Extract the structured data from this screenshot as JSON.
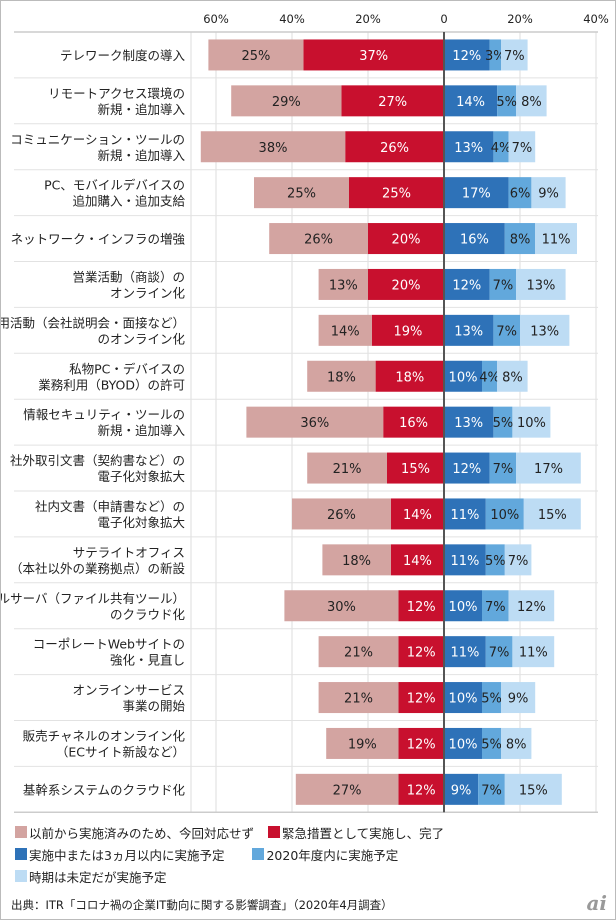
{
  "chart_data": {
    "type": "bar",
    "orientation": "horizontal-diverging-stacked",
    "axis_ticks": [
      "60%",
      "40%",
      "20%",
      "0",
      "20%",
      "40%"
    ],
    "xlim": [
      -60,
      40
    ],
    "grid": true,
    "legend_position": "bottom",
    "categories": [
      [
        "テレワーク制度の導入"
      ],
      [
        "リモートアクセス環境の",
        "新規・追加導入"
      ],
      [
        "コミュニケーション・ツールの",
        "新規・追加導入"
      ],
      [
        "PC、モバイルデバイスの",
        "追加購入・追加支給"
      ],
      [
        "ネットワーク・インフラの増強"
      ],
      [
        "営業活動（商談）の",
        "オンライン化"
      ],
      [
        "採用活動（会社説明会・面接など）",
        "のオンライン化"
      ],
      [
        "私物PC・デバイスの",
        "業務利用（BYOD）の許可"
      ],
      [
        "情報セキュリティ・ツールの",
        "新規・追加導入"
      ],
      [
        "社外取引文書（契約書など）の",
        "電子化対象拡大"
      ],
      [
        "社内文書（申請書など）の",
        "電子化対象拡大"
      ],
      [
        "サテライトオフィス",
        "（本社以外の業務拠点）の新設"
      ],
      [
        "ファイルサーバ（ファイル共有ツール）",
        "のクラウド化"
      ],
      [
        "コーポレートWebサイトの",
        "強化・見直し"
      ],
      [
        "オンラインサービス",
        "事業の開始"
      ],
      [
        "販売チャネルのオンライン化",
        "（ECサイト新設など）"
      ],
      [
        "基幹系システムのクラウド化"
      ]
    ],
    "series": [
      {
        "name": "以前から実施済みのため、今回対応せず",
        "side": "left",
        "color": "#d3a4a1",
        "text_color": "#222",
        "values": [
          25,
          29,
          38,
          25,
          26,
          13,
          14,
          18,
          36,
          21,
          26,
          18,
          30,
          21,
          21,
          19,
          27
        ]
      },
      {
        "name": "緊急措置として実施し、完了",
        "side": "left",
        "color": "#c8102e",
        "text_color": "#fff",
        "values": [
          37,
          27,
          26,
          25,
          20,
          20,
          19,
          18,
          16,
          15,
          14,
          14,
          12,
          12,
          12,
          12,
          12
        ]
      },
      {
        "name": "実施中または3ヵ月以内に実施予定",
        "side": "right",
        "color": "#2e72b8",
        "text_color": "#fff",
        "values": [
          12,
          14,
          13,
          17,
          16,
          12,
          13,
          10,
          13,
          12,
          11,
          11,
          10,
          11,
          10,
          10,
          9
        ]
      },
      {
        "name": "2020年度内に実施予定",
        "side": "right",
        "color": "#62a8dc",
        "text_color": "#222",
        "values": [
          3,
          5,
          4,
          6,
          8,
          7,
          7,
          4,
          5,
          7,
          10,
          5,
          7,
          7,
          5,
          5,
          7
        ]
      },
      {
        "name": "時期は未定だが実施予定",
        "side": "right",
        "color": "#bddcf4",
        "text_color": "#222",
        "values": [
          7,
          8,
          7,
          9,
          11,
          13,
          13,
          8,
          10,
          17,
          15,
          7,
          12,
          11,
          9,
          8,
          15
        ]
      }
    ]
  },
  "source": "出典：ITR「コロナ禍の企業IT動向に関する影響調査」（2020年4月調査）",
  "logo_text": "ai"
}
